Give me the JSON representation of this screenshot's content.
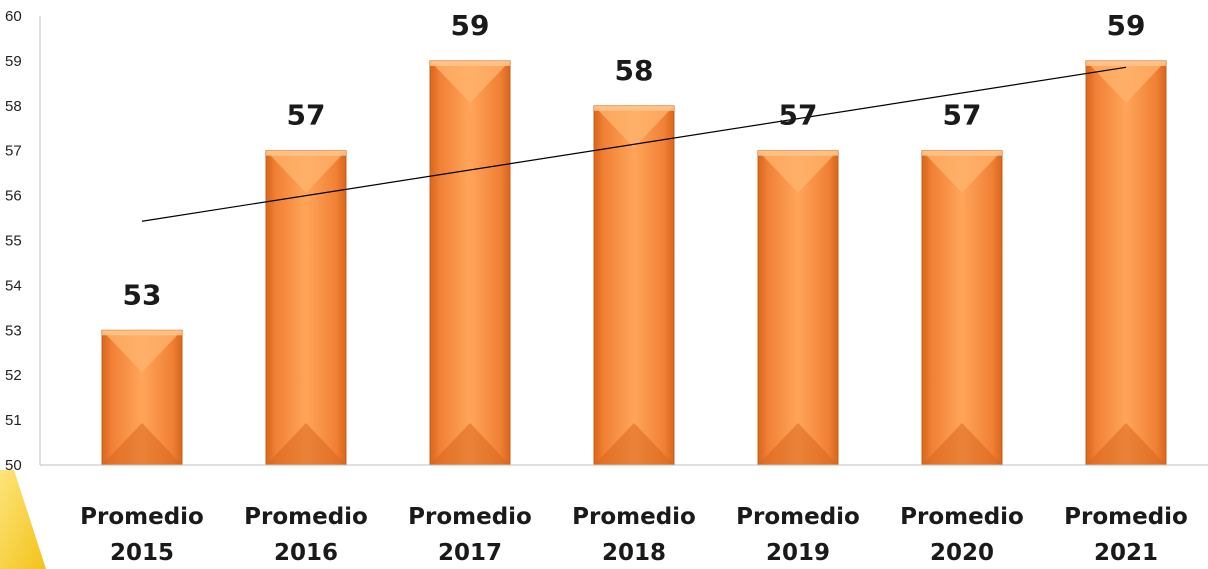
{
  "chart_data": {
    "type": "bar",
    "title": "",
    "xlabel": "",
    "ylabel": "",
    "categories": [
      [
        "Promedio",
        "2015"
      ],
      [
        "Promedio",
        "2016"
      ],
      [
        "Promedio",
        "2017"
      ],
      [
        "Promedio",
        "2018"
      ],
      [
        "Promedio",
        "2019"
      ],
      [
        "Promedio",
        "2020"
      ],
      [
        "Promedio",
        "2021"
      ]
    ],
    "values": [
      53,
      57,
      59,
      58,
      57,
      57,
      59
    ],
    "data_labels": [
      "53",
      "57",
      "59",
      "58",
      "57",
      "57",
      "59"
    ],
    "ylim": [
      50,
      60
    ],
    "yticks": [
      50,
      51,
      52,
      53,
      54,
      55,
      56,
      57,
      58,
      59,
      60
    ],
    "grid": false,
    "legend": "none",
    "trendline": {
      "type": "linear",
      "visible": true
    },
    "colors": {
      "bar_light": "#ffb46e",
      "bar_main": "#f5893a",
      "bar_dark": "#d8661c",
      "bar_edge": "#c95f1a",
      "trendline": "#000000",
      "axis": "#bfbfbf",
      "decor_yellow": "#f6d12e"
    }
  }
}
